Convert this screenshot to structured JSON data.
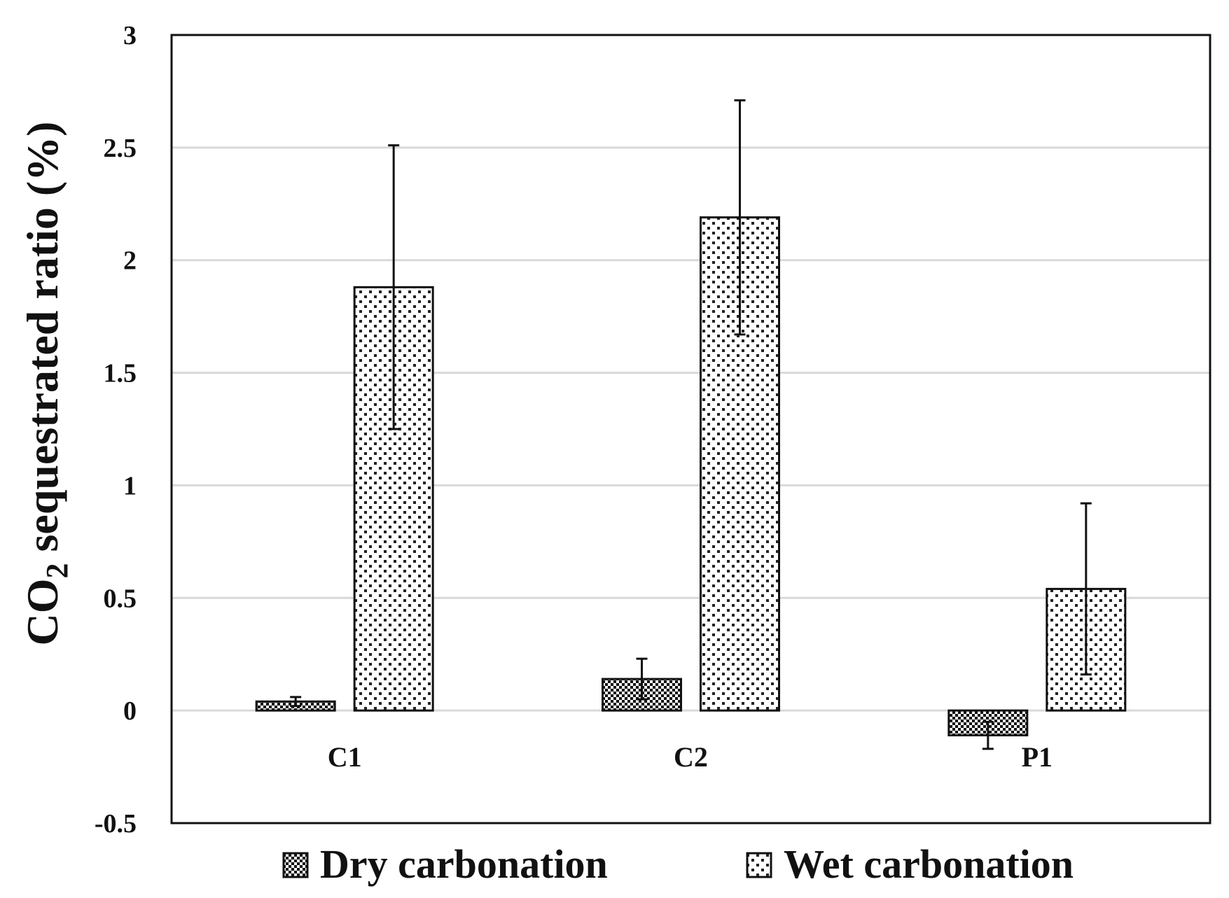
{
  "chart_data": {
    "type": "bar",
    "title": "",
    "xlabel": "",
    "ylabel": {
      "main": "CO",
      "subscript": "2",
      "rest": " sequestrated ratio (%)"
    },
    "categories": [
      "C1",
      "C2",
      "P1"
    ],
    "ylim": [
      -0.5,
      3
    ],
    "yticks": [
      -0.5,
      0,
      0.5,
      1,
      1.5,
      2,
      2.5,
      3
    ],
    "ytick_labels": [
      "-0.5",
      "0",
      "0.5",
      "1",
      "1.5",
      "2",
      "2.5",
      "3"
    ],
    "grid": true,
    "legend_position": "bottom",
    "series": [
      {
        "name": "Dry carbonation",
        "pattern": "checker",
        "values": [
          0.04,
          0.14,
          -0.11
        ],
        "errors": [
          0.02,
          0.09,
          0.06
        ]
      },
      {
        "name": "Wet carbonation",
        "pattern": "dots",
        "values": [
          1.88,
          2.19,
          0.54
        ],
        "errors": [
          0.63,
          0.52,
          0.38
        ]
      }
    ]
  }
}
